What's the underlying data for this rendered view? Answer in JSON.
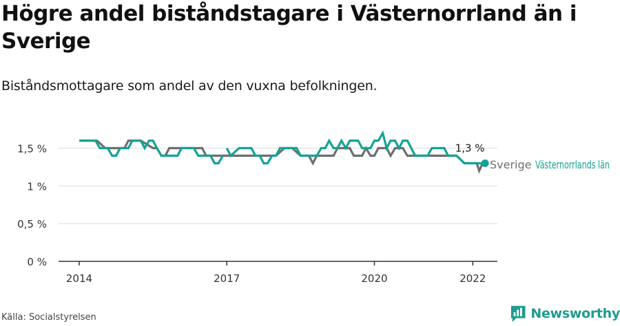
{
  "title": "Högre andel biståndstagare i Västernorrland än i Sverige",
  "subtitle": "Biståndsmottagare som andel av den vuxna befolkningen.",
  "source": "Källa: Socialstyrelsen",
  "brand": {
    "name": "Newsworthy",
    "icon": "newsworthy-logo-icon"
  },
  "colors": {
    "vasternorrland": "#13a395",
    "sverige": "#6e6e6e",
    "grid": "#dddddd",
    "axis": "#333333"
  },
  "chart_data": {
    "type": "line",
    "title": "Högre andel biståndstagare i Västernorrland än i Sverige",
    "subtitle": "Biståndsmottagare som andel av den vuxna befolkningen.",
    "xlabel": "",
    "ylabel": "",
    "x_ticks": [
      {
        "value": 2014,
        "label": "2014"
      },
      {
        "value": 2017,
        "label": "2017"
      },
      {
        "value": 2020,
        "label": "2020"
      },
      {
        "value": 2022,
        "label": "2022"
      }
    ],
    "xlim": [
      2013.58,
      2022.5
    ],
    "y_ticks": [
      {
        "value": 0,
        "label": "0 %"
      },
      {
        "value": 0.5,
        "label": "0,5 %"
      },
      {
        "value": 1,
        "label": "1 %"
      },
      {
        "value": 1.5,
        "label": "1,5 %"
      }
    ],
    "ylim": [
      0,
      1.75
    ],
    "grid": true,
    "end_label": {
      "value": 1.3,
      "text": "1,3 %"
    },
    "series": [
      {
        "name": "Sverige",
        "color": "#6e6e6e",
        "points": [
          [
            2014.0,
            1.6
          ],
          [
            2014.36,
            1.6
          ],
          [
            2014.53,
            1.5
          ],
          [
            2014.92,
            1.5
          ],
          [
            2015.0,
            1.6
          ],
          [
            2015.25,
            1.6
          ],
          [
            2015.5,
            1.5
          ],
          [
            2015.58,
            1.5
          ],
          [
            2015.67,
            1.4
          ],
          [
            2015.75,
            1.4
          ],
          [
            2015.83,
            1.5
          ],
          [
            2016.5,
            1.5
          ],
          [
            2016.58,
            1.4
          ],
          [
            2016.67,
            1.4
          ],
          [
            2016.75,
            1.4
          ],
          [
            2016.83,
            1.4
          ],
          [
            2016.92,
            1.4
          ],
          [
            2017.0,
            1.4
          ],
          [
            2017.33,
            1.4
          ],
          [
            2017.42,
            1.4
          ],
          [
            2018.0,
            1.4
          ],
          [
            2018.17,
            1.5
          ],
          [
            2018.33,
            1.5
          ],
          [
            2018.5,
            1.4
          ],
          [
            2018.67,
            1.4
          ],
          [
            2018.75,
            1.3
          ],
          [
            2018.83,
            1.4
          ],
          [
            2019.0,
            1.4
          ],
          [
            2019.17,
            1.4
          ],
          [
            2019.25,
            1.5
          ],
          [
            2019.5,
            1.5
          ],
          [
            2019.58,
            1.4
          ],
          [
            2019.75,
            1.4
          ],
          [
            2019.83,
            1.5
          ],
          [
            2019.92,
            1.4
          ],
          [
            2020.0,
            1.4
          ],
          [
            2020.08,
            1.5
          ],
          [
            2020.25,
            1.5
          ],
          [
            2020.33,
            1.4
          ],
          [
            2020.42,
            1.5
          ],
          [
            2020.58,
            1.5
          ],
          [
            2020.67,
            1.4
          ],
          [
            2021.17,
            1.4
          ],
          [
            2021.67,
            1.4
          ],
          [
            2021.83,
            1.3
          ],
          [
            2022.0,
            1.3
          ],
          [
            2022.08,
            1.3
          ],
          [
            2022.13,
            1.2
          ],
          [
            2022.2,
            1.3
          ]
        ]
      },
      {
        "name": "Västernorrlands län",
        "color": "#13a395",
        "points": [
          [
            2014.0,
            1.6
          ],
          [
            2014.33,
            1.6
          ],
          [
            2014.42,
            1.5
          ],
          [
            2014.58,
            1.5
          ],
          [
            2014.67,
            1.4
          ],
          [
            2014.75,
            1.4
          ],
          [
            2014.83,
            1.5
          ],
          [
            2015.0,
            1.5
          ],
          [
            2015.08,
            1.6
          ],
          [
            2015.25,
            1.6
          ],
          [
            2015.33,
            1.5
          ],
          [
            2015.42,
            1.6
          ],
          [
            2015.5,
            1.6
          ],
          [
            2015.58,
            1.5
          ],
          [
            2015.67,
            1.4
          ],
          [
            2016.0,
            1.4
          ],
          [
            2016.08,
            1.5
          ],
          [
            2016.33,
            1.5
          ],
          [
            2016.42,
            1.4
          ],
          [
            2016.67,
            1.4
          ],
          [
            2016.75,
            1.3
          ],
          [
            2016.83,
            1.3
          ],
          [
            2016.92,
            1.4
          ],
          null,
          [
            2017.0,
            1.5
          ],
          [
            2017.08,
            1.4
          ],
          [
            2017.25,
            1.5
          ],
          [
            2017.5,
            1.5
          ],
          [
            2017.58,
            1.4
          ],
          [
            2017.67,
            1.4
          ],
          [
            2017.75,
            1.3
          ],
          [
            2017.83,
            1.3
          ],
          [
            2017.92,
            1.4
          ],
          [
            2018.0,
            1.4
          ],
          [
            2018.08,
            1.5
          ],
          [
            2018.42,
            1.5
          ],
          [
            2018.5,
            1.4
          ],
          [
            2018.83,
            1.4
          ],
          [
            2018.92,
            1.5
          ],
          [
            2019.0,
            1.5
          ],
          [
            2019.08,
            1.6
          ],
          [
            2019.17,
            1.5
          ],
          [
            2019.25,
            1.5
          ],
          [
            2019.33,
            1.6
          ],
          [
            2019.42,
            1.5
          ],
          [
            2019.5,
            1.6
          ],
          [
            2019.67,
            1.6
          ],
          [
            2019.75,
            1.5
          ],
          [
            2019.92,
            1.5
          ],
          [
            2020.0,
            1.6
          ],
          [
            2020.08,
            1.6
          ],
          [
            2020.17,
            1.7
          ],
          [
            2020.25,
            1.5
          ],
          [
            2020.33,
            1.6
          ],
          [
            2020.42,
            1.6
          ],
          [
            2020.5,
            1.5
          ],
          [
            2020.58,
            1.6
          ],
          [
            2020.67,
            1.6
          ],
          [
            2020.83,
            1.4
          ],
          [
            2021.08,
            1.4
          ],
          [
            2021.17,
            1.5
          ],
          [
            2021.42,
            1.5
          ],
          [
            2021.5,
            1.4
          ],
          [
            2021.67,
            1.4
          ],
          [
            2021.83,
            1.3
          ],
          [
            2022.08,
            1.3
          ],
          [
            2022.25,
            1.3
          ]
        ]
      }
    ]
  }
}
